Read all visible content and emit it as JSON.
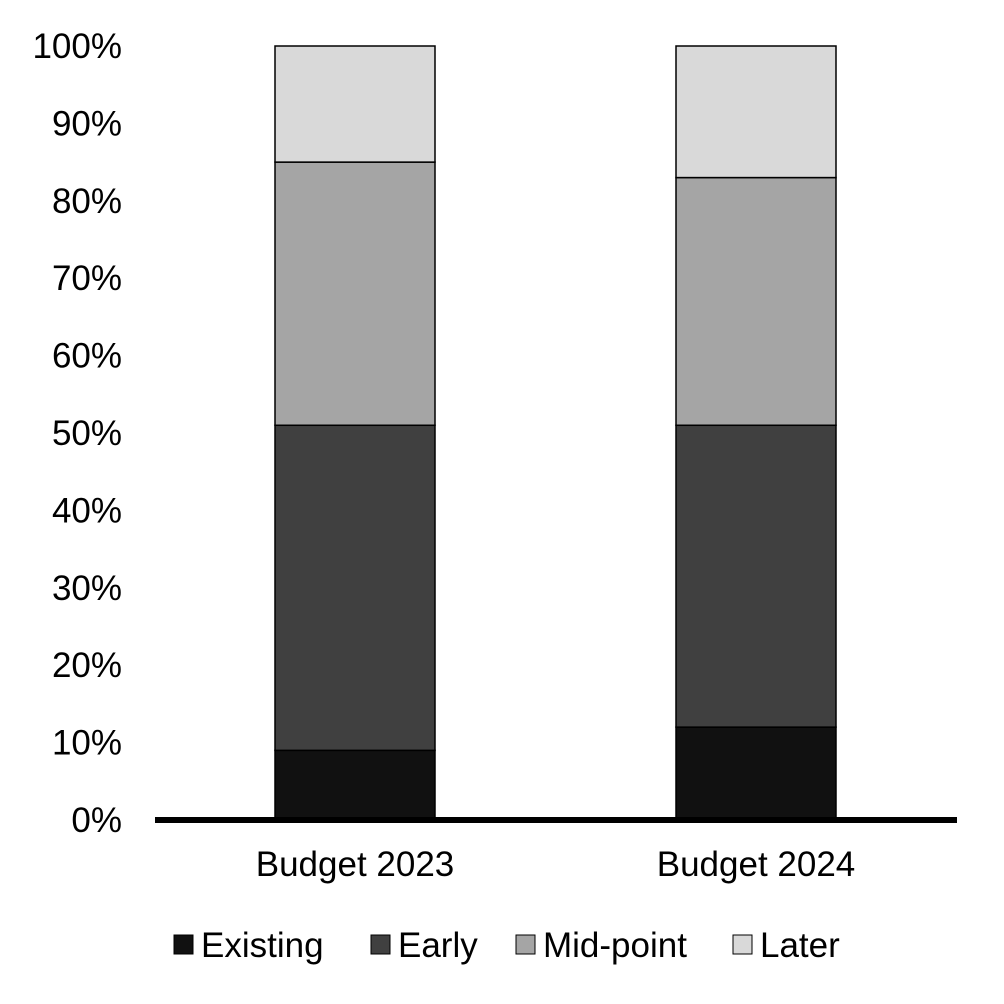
{
  "chart_data": {
    "type": "bar",
    "stacked": true,
    "title": "",
    "xlabel": "",
    "ylabel": "",
    "categories": [
      "Budget 2023",
      "Budget 2024"
    ],
    "series": [
      {
        "name": "Existing",
        "color": "#111111",
        "values": [
          9,
          12
        ]
      },
      {
        "name": "Early",
        "color": "#404040",
        "values": [
          42,
          39
        ]
      },
      {
        "name": "Mid-point",
        "color": "#a5a5a5",
        "values": [
          34,
          32
        ]
      },
      {
        "name": "Later",
        "color": "#d9d9d9",
        "values": [
          15,
          17
        ]
      }
    ],
    "ylim": [
      0,
      100
    ],
    "y_ticks": [
      "0%",
      "10%",
      "20%",
      "30%",
      "40%",
      "50%",
      "60%",
      "70%",
      "80%",
      "90%",
      "100%"
    ],
    "grid": false,
    "legend_position": "bottom"
  }
}
